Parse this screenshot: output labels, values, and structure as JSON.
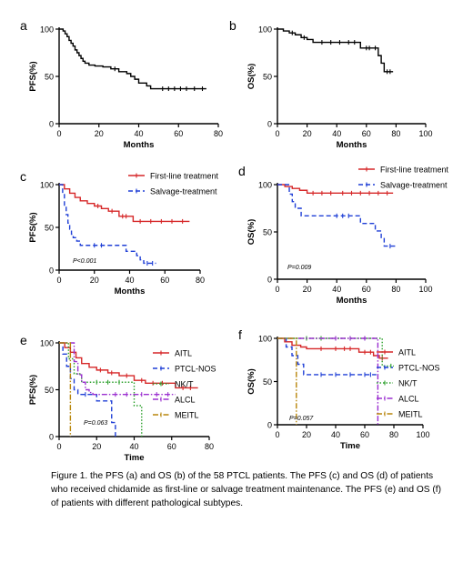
{
  "caption": "Figure 1. the PFS (a) and OS (b) of the 58 PTCL patients. The PFS (c) and OS (d) of patients who received chidamide as first-line or salvage treatment maintenance. The PFS (e) and OS (f) of patients with different pathological subtypes.",
  "chart_data": [
    {
      "panel": "a",
      "type": "line",
      "step": true,
      "xlabel": "Months",
      "ylabel": "PFS(%)",
      "xlim": [
        0,
        80
      ],
      "ylim": [
        0,
        100
      ],
      "xticks": [
        0,
        20,
        40,
        60,
        80
      ],
      "yticks": [
        0,
        50,
        100
      ],
      "series": [
        {
          "color": "#000000",
          "dash": "solid",
          "x": [
            0,
            2,
            3,
            4,
            5,
            6,
            7,
            8,
            9,
            10,
            11,
            12,
            13,
            15,
            18,
            22,
            26,
            30,
            34,
            36,
            38,
            40,
            44,
            46,
            74
          ],
          "y": [
            100,
            98,
            95,
            92,
            88,
            85,
            82,
            78,
            75,
            72,
            69,
            66,
            64,
            62,
            61,
            60,
            58,
            55,
            53,
            50,
            47,
            43,
            40,
            37,
            37
          ],
          "censor": [
            28,
            52,
            55,
            58,
            61,
            64,
            68,
            72
          ]
        }
      ]
    },
    {
      "panel": "b",
      "type": "line",
      "step": true,
      "xlabel": "Months",
      "ylabel": "OS(%)",
      "xlim": [
        0,
        100
      ],
      "ylim": [
        0,
        100
      ],
      "xticks": [
        0,
        20,
        40,
        60,
        80,
        100
      ],
      "yticks": [
        0,
        50,
        100
      ],
      "series": [
        {
          "color": "#000000",
          "dash": "solid",
          "x": [
            0,
            4,
            8,
            12,
            16,
            20,
            24,
            56,
            68,
            70,
            72,
            78
          ],
          "y": [
            100,
            98,
            96,
            94,
            91,
            89,
            86,
            80,
            72,
            64,
            55,
            55
          ],
          "censor": [
            10,
            18,
            30,
            36,
            42,
            48,
            52,
            60,
            62,
            66,
            74,
            76
          ]
        }
      ]
    },
    {
      "panel": "c",
      "type": "line",
      "step": true,
      "xlabel": "Months",
      "ylabel": "PFS(%)",
      "xlim": [
        0,
        80
      ],
      "ylim": [
        0,
        100
      ],
      "xticks": [
        0,
        20,
        40,
        60,
        80
      ],
      "yticks": [
        0,
        50,
        100
      ],
      "annotation": "P<0.001",
      "legend": [
        "First-line treatment",
        "Salvage-treatment"
      ],
      "series": [
        {
          "name": "First-line treatment",
          "color": "#d62728",
          "dash": "solid",
          "x": [
            0,
            3,
            6,
            9,
            12,
            16,
            20,
            24,
            28,
            34,
            42,
            74
          ],
          "y": [
            100,
            95,
            90,
            85,
            81,
            78,
            75,
            72,
            69,
            63,
            57,
            57
          ],
          "censor": [
            22,
            30,
            36,
            38,
            46,
            52,
            58,
            64,
            70
          ]
        },
        {
          "name": "Salvage-treatment",
          "color": "#1f3fd6",
          "dash": "dashed",
          "x": [
            0,
            2,
            3,
            4,
            5,
            6,
            7,
            8,
            10,
            12,
            38,
            44,
            46,
            48,
            55
          ],
          "y": [
            100,
            90,
            75,
            65,
            55,
            48,
            42,
            38,
            34,
            29,
            22,
            17,
            12,
            8,
            8
          ],
          "censor": [
            20,
            24,
            50,
            53
          ]
        }
      ]
    },
    {
      "panel": "d",
      "type": "line",
      "step": true,
      "xlabel": "Months",
      "ylabel": "OS(%)",
      "xlim": [
        0,
        100
      ],
      "ylim": [
        0,
        100
      ],
      "xticks": [
        0,
        20,
        40,
        60,
        80,
        100
      ],
      "yticks": [
        0,
        50,
        100
      ],
      "annotation": "P=0.009",
      "legend": [
        "First-line treatment",
        "Salvage-treatment"
      ],
      "series": [
        {
          "name": "First-line treatment",
          "color": "#d62728",
          "dash": "solid",
          "x": [
            0,
            5,
            10,
            15,
            20,
            78
          ],
          "y": [
            100,
            98,
            96,
            94,
            91,
            91
          ],
          "censor": [
            24,
            30,
            36,
            44,
            50,
            56,
            62,
            68,
            74
          ]
        },
        {
          "name": "Salvage-treatment",
          "color": "#1f3fd6",
          "dash": "dashed",
          "x": [
            0,
            8,
            10,
            12,
            16,
            56,
            66,
            70,
            72,
            80
          ],
          "y": [
            100,
            90,
            82,
            75,
            67,
            59,
            51,
            43,
            35,
            35
          ],
          "censor": [
            40,
            44,
            48,
            76
          ]
        }
      ]
    },
    {
      "panel": "e",
      "type": "line",
      "step": true,
      "xlabel": "Time",
      "ylabel": "PFS(%)",
      "xlim": [
        0,
        80
      ],
      "ylim": [
        0,
        100
      ],
      "xticks": [
        0,
        20,
        40,
        60,
        80
      ],
      "yticks": [
        0,
        50,
        100
      ],
      "annotation": "P=0.063",
      "legend": [
        "AITL",
        "PTCL-NOS",
        "NK/T",
        "ALCL",
        "MEITL"
      ],
      "series": [
        {
          "name": "AITL",
          "color": "#d62728",
          "dash": "solid",
          "x": [
            0,
            3,
            6,
            9,
            12,
            16,
            20,
            26,
            32,
            40,
            46,
            62,
            74
          ],
          "y": [
            100,
            95,
            90,
            84,
            78,
            74,
            71,
            68,
            65,
            60,
            57,
            52,
            52
          ],
          "censor": [
            22,
            28,
            36,
            44,
            50,
            55,
            66,
            70
          ]
        },
        {
          "name": "PTCL-NOS",
          "color": "#1f3fd6",
          "dash": "dashed",
          "x": [
            0,
            2,
            4,
            6,
            8,
            10,
            20,
            28,
            30
          ],
          "y": [
            100,
            88,
            75,
            62,
            50,
            45,
            38,
            15,
            0
          ],
          "censor": [
            14
          ]
        },
        {
          "name": "NK/T",
          "color": "#2ca02c",
          "dash": "dotted",
          "x": [
            0,
            5,
            8,
            12,
            40,
            44
          ],
          "y": [
            100,
            83,
            67,
            58,
            33,
            0
          ],
          "censor": [
            20,
            26,
            32
          ]
        },
        {
          "name": "ALCL",
          "color": "#9b30d0",
          "dash": "dashdot",
          "x": [
            0,
            8,
            10,
            12,
            14,
            16,
            18,
            62
          ],
          "y": [
            100,
            80,
            66,
            58,
            50,
            47,
            45,
            45
          ],
          "censor": [
            30,
            36,
            44,
            52,
            58
          ]
        },
        {
          "name": "MEITL",
          "color": "#b8860b",
          "dash": "dashdot",
          "x": [
            0,
            5,
            6
          ],
          "y": [
            100,
            100,
            0
          ],
          "censor": []
        }
      ]
    },
    {
      "panel": "f",
      "type": "line",
      "step": true,
      "xlabel": "Time",
      "ylabel": "OS(%)",
      "xlim": [
        0,
        100
      ],
      "ylim": [
        0,
        100
      ],
      "xticks": [
        0,
        20,
        40,
        60,
        80,
        100
      ],
      "yticks": [
        0,
        50,
        100
      ],
      "annotation": "P=0.057",
      "legend": [
        "AITL",
        "PTCL-NOS",
        "NK/T",
        "ALCL",
        "MEITL"
      ],
      "series": [
        {
          "name": "AITL",
          "color": "#d62728",
          "dash": "solid",
          "x": [
            0,
            5,
            10,
            16,
            20,
            56,
            66,
            70,
            76
          ],
          "y": [
            100,
            96,
            92,
            90,
            88,
            84,
            80,
            77,
            77
          ],
          "censor": [
            30,
            40,
            46,
            50,
            60,
            64,
            72
          ]
        },
        {
          "name": "PTCL-NOS",
          "color": "#1f3fd6",
          "dash": "dashed",
          "x": [
            0,
            6,
            10,
            14,
            18,
            68
          ],
          "y": [
            100,
            90,
            80,
            70,
            58,
            58
          ],
          "censor": [
            30,
            40,
            50,
            60,
            64
          ]
        },
        {
          "name": "NK/T",
          "color": "#2ca02c",
          "dash": "dotted",
          "x": [
            0,
            70,
            72,
            80
          ],
          "y": [
            100,
            100,
            68,
            68
          ],
          "censor": [
            20,
            30,
            40,
            50,
            60,
            78
          ]
        },
        {
          "name": "ALCL",
          "color": "#9b30d0",
          "dash": "dashdot",
          "x": [
            0,
            68,
            69
          ],
          "y": [
            100,
            100,
            0
          ],
          "censor": [
            40,
            50,
            60
          ]
        },
        {
          "name": "MEITL",
          "color": "#b8860b",
          "dash": "dashdot",
          "x": [
            0,
            12,
            13
          ],
          "y": [
            100,
            100,
            0
          ],
          "censor": []
        }
      ]
    }
  ]
}
